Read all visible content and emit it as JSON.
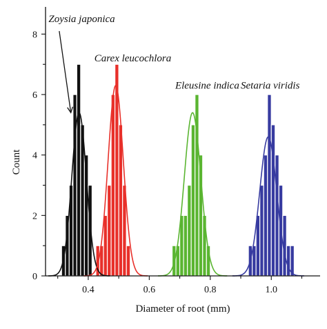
{
  "chart_data": {
    "type": "bar",
    "title": "",
    "xlabel": "Diameter of root (mm)",
    "ylabel": "Count",
    "xlim": [
      0.26,
      1.16
    ],
    "ylim": [
      0,
      8.9
    ],
    "xticks": [
      0.4,
      0.6,
      0.8,
      1.0
    ],
    "xtick_labels": [
      "0.4",
      "0.6",
      "0.8",
      "1.0"
    ],
    "yticks": [
      0,
      2,
      4,
      6,
      8
    ],
    "ytick_labels": [
      "0",
      "2",
      "4",
      "6",
      "8"
    ],
    "grid": false,
    "bin_width": 0.0125,
    "series": [
      {
        "name": "Zoysia japonica",
        "color": "#111111",
        "bin_starts": [
          0.3125,
          0.325,
          0.3375,
          0.35,
          0.3625,
          0.375,
          0.3875,
          0.4
        ],
        "values": [
          1,
          2,
          3,
          6,
          7,
          5,
          4,
          3
        ],
        "curve_mean": 0.37,
        "curve_sd": 0.024,
        "curve_peak": 5.4
      },
      {
        "name": "Carex leucochlora",
        "color": "#e8302a",
        "bin_starts": [
          0.425,
          0.4375,
          0.45,
          0.4625,
          0.475,
          0.4875,
          0.5,
          0.5125,
          0.525
        ],
        "values": [
          1,
          1,
          2,
          3,
          6,
          7,
          5,
          3,
          1
        ],
        "curve_mean": 0.49,
        "curve_sd": 0.025,
        "curve_peak": 6.3
      },
      {
        "name": "Eleusine indica",
        "color": "#5ab531",
        "bin_starts": [
          0.675,
          0.6875,
          0.7,
          0.7125,
          0.725,
          0.7375,
          0.75,
          0.7625,
          0.775,
          0.7875
        ],
        "values": [
          1,
          1,
          2,
          2,
          3,
          5,
          6,
          4,
          2,
          1
        ],
        "curve_mean": 0.742,
        "curve_sd": 0.027,
        "curve_peak": 5.4
      },
      {
        "name": "Setaria viridis",
        "color": "#373ba0",
        "bin_starts": [
          0.925,
          0.9375,
          0.95,
          0.9625,
          0.975,
          0.9875,
          1.0,
          1.0125,
          1.025,
          1.0375,
          1.05,
          1.0625
        ],
        "values": [
          1,
          1,
          2,
          3,
          4,
          6,
          5,
          4,
          3,
          2,
          1,
          1
        ],
        "curve_mean": 0.99,
        "curve_sd": 0.028,
        "curve_peak": 4.6
      }
    ],
    "annotations": [
      {
        "text": "Zoysia japonica",
        "x": 0.27,
        "y": 8.4,
        "arrow_to": [
          0.343,
          5.4
        ],
        "arrow_from": [
          0.305,
          8.1
        ]
      },
      {
        "text": "Carex leucochlora",
        "x": 0.42,
        "y": 7.1
      },
      {
        "text": "Eleusine indica",
        "x": 0.685,
        "y": 6.2
      },
      {
        "text": "Setaria viridis",
        "x": 0.9,
        "y": 6.2
      }
    ]
  }
}
